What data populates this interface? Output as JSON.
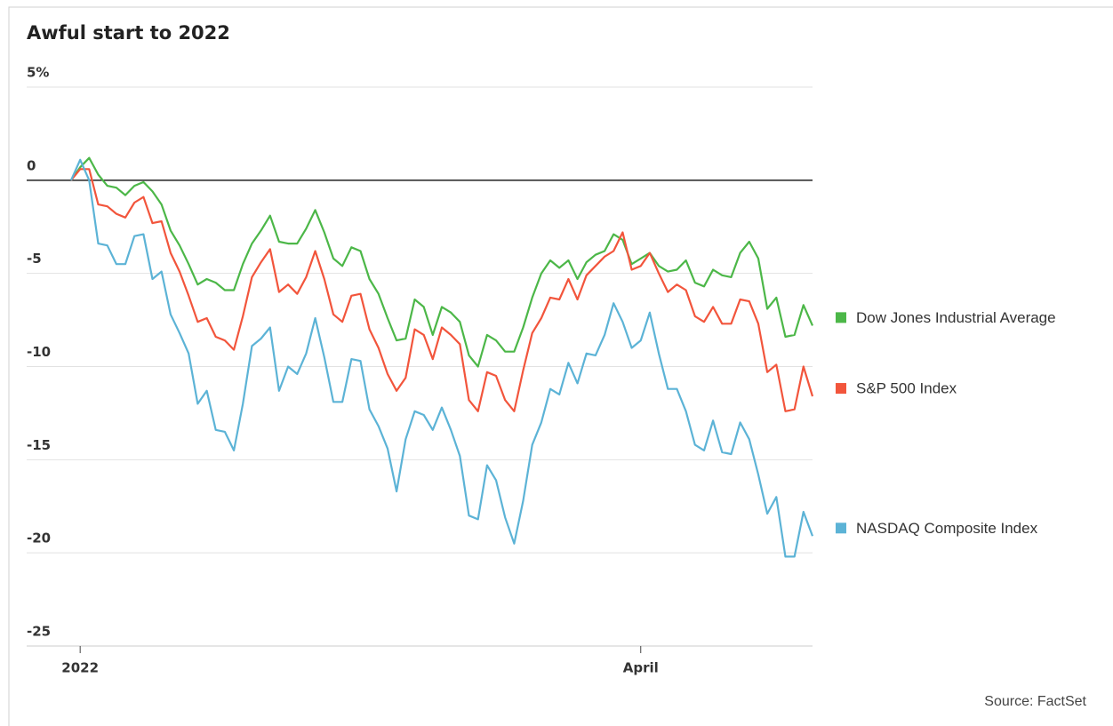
{
  "chart_data": {
    "type": "line",
    "title": "Awful start to 2022",
    "source": "Source: FactSet",
    "categories": [
      null,
      "2022",
      null,
      null,
      null,
      null,
      null,
      null,
      null,
      null,
      null,
      null,
      null,
      null,
      null,
      null,
      null,
      null,
      null,
      null,
      null,
      null,
      null,
      null,
      null,
      null,
      null,
      null,
      null,
      null,
      null,
      null,
      null,
      null,
      null,
      null,
      null,
      null,
      null,
      null,
      null,
      null,
      null,
      null,
      null,
      null,
      null,
      null,
      null,
      null,
      null,
      null,
      null,
      null,
      null,
      null,
      null,
      null,
      null,
      null,
      null,
      null,
      null,
      "April",
      null,
      null,
      null,
      null,
      null,
      null,
      null,
      null,
      null,
      null,
      null,
      null,
      null,
      null,
      null,
      null,
      null,
      null,
      null
    ],
    "ylim": [
      -25,
      5
    ],
    "yticks": [
      {
        "value": 5,
        "label": "5%"
      },
      0,
      -5,
      -10,
      -15,
      -20,
      -25
    ],
    "grid": true,
    "series": [
      {
        "name": "Dow Jones Industrial Average",
        "color": "#4cb748",
        "values": [
          0,
          0.7,
          1.2,
          0.3,
          -0.3,
          -0.4,
          -0.8,
          -0.3,
          -0.1,
          -0.6,
          -1.3,
          -2.7,
          -3.5,
          -4.5,
          -5.6,
          -5.3,
          -5.5,
          -5.9,
          -5.9,
          -4.5,
          -3.4,
          -2.7,
          -1.9,
          -3.3,
          -3.4,
          -3.4,
          -2.6,
          -1.6,
          -2.8,
          -4.2,
          -4.6,
          -3.6,
          -3.8,
          -5.3,
          -6.1,
          -7.4,
          -8.6,
          -8.5,
          -6.4,
          -6.8,
          -8.3,
          -6.8,
          -7.1,
          -7.6,
          -9.4,
          -10.0,
          -8.3,
          -8.6,
          -9.2,
          -9.2,
          -7.9,
          -6.3,
          -5.0,
          -4.3,
          -4.7,
          -4.3,
          -5.3,
          -4.4,
          -4.0,
          -3.8,
          -2.9,
          -3.2,
          -4.5,
          -4.2,
          -3.9,
          -4.6,
          -4.9,
          -4.8,
          -4.3,
          -5.5,
          -5.7,
          -4.8,
          -5.1,
          -5.2,
          -3.9,
          -3.3,
          -4.2,
          -6.9,
          -6.3,
          -8.4,
          -8.3,
          -6.7,
          -7.8
        ]
      },
      {
        "name": "S&P 500 Index",
        "color": "#f2553c",
        "values": [
          0,
          0.6,
          0.6,
          -1.3,
          -1.4,
          -1.8,
          -2.0,
          -1.2,
          -0.9,
          -2.3,
          -2.2,
          -3.9,
          -4.9,
          -6.2,
          -7.6,
          -7.4,
          -8.4,
          -8.6,
          -9.1,
          -7.3,
          -5.2,
          -4.4,
          -3.7,
          -6.0,
          -5.6,
          -6.1,
          -5.2,
          -3.8,
          -5.3,
          -7.2,
          -7.6,
          -6.2,
          -6.1,
          -8.0,
          -9.0,
          -10.4,
          -11.3,
          -10.6,
          -8.0,
          -8.3,
          -9.6,
          -7.9,
          -8.3,
          -8.8,
          -11.8,
          -12.4,
          -10.3,
          -10.5,
          -11.8,
          -12.4,
          -10.2,
          -8.2,
          -7.4,
          -6.3,
          -6.4,
          -5.3,
          -6.4,
          -5.1,
          -4.6,
          -4.1,
          -3.8,
          -2.8,
          -4.8,
          -4.6,
          -3.9,
          -5.0,
          -6.0,
          -5.6,
          -5.9,
          -7.3,
          -7.6,
          -6.8,
          -7.7,
          -7.7,
          -6.4,
          -6.5,
          -7.7,
          -10.3,
          -9.9,
          -12.4,
          -12.3,
          -10.0,
          -11.6
        ]
      },
      {
        "name": "NASDAQ Composite Index",
        "color": "#5cb3d6",
        "values": [
          0,
          1.1,
          0.0,
          -3.4,
          -3.5,
          -4.5,
          -4.5,
          -3.0,
          -2.9,
          -5.3,
          -4.9,
          -7.2,
          -8.2,
          -9.3,
          -12.0,
          -11.3,
          -13.4,
          -13.5,
          -14.5,
          -12.0,
          -8.9,
          -8.5,
          -7.9,
          -11.3,
          -10.0,
          -10.4,
          -9.3,
          -7.4,
          -9.5,
          -11.9,
          -11.9,
          -9.6,
          -9.7,
          -12.3,
          -13.2,
          -14.4,
          -16.7,
          -13.9,
          -12.4,
          -12.6,
          -13.4,
          -12.2,
          -13.4,
          -14.8,
          -18.0,
          -18.2,
          -15.3,
          -16.1,
          -18.1,
          -19.5,
          -17.2,
          -14.2,
          -13.0,
          -11.2,
          -11.5,
          -9.8,
          -10.9,
          -9.3,
          -9.4,
          -8.3,
          -6.6,
          -7.6,
          -9.0,
          -8.6,
          -7.1,
          -9.3,
          -11.2,
          -11.2,
          -12.4,
          -14.2,
          -14.5,
          -12.9,
          -14.6,
          -14.7,
          -13.0,
          -13.9,
          -15.8,
          -17.9,
          -17.0,
          -20.2,
          -20.2,
          -17.8,
          -19.1
        ]
      }
    ]
  }
}
